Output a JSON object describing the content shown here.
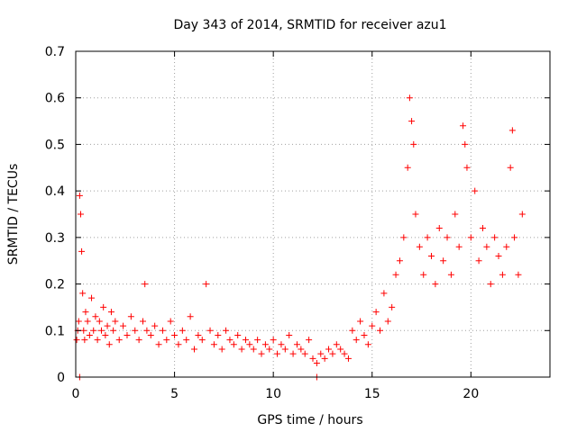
{
  "chart_data": {
    "type": "scatter",
    "title": "Day 343 of 2014, SRMTID for receiver azu1",
    "xlabel": "GPS time / hours",
    "ylabel": "SRMTID / TECUs",
    "xlim": [
      0,
      24
    ],
    "ylim": [
      0,
      0.7
    ],
    "xticks": [
      0,
      5,
      10,
      15,
      20
    ],
    "xtick_labels": [
      "0",
      "5",
      "10",
      "15",
      "20"
    ],
    "yticks": [
      0,
      0.1,
      0.2,
      0.3,
      0.4,
      0.5,
      0.6,
      0.7
    ],
    "ytick_labels": [
      "0",
      "0.1",
      "0.2",
      "0.3",
      "0.4",
      "0.5",
      "0.6",
      "0.7"
    ],
    "grid": true,
    "marker": "+",
    "color": "#ff0000",
    "series": [
      {
        "name": "azu1",
        "x": [
          0.05,
          0.1,
          0.15,
          0.2,
          0.25,
          0.3,
          0.35,
          0.4,
          0.45,
          0.5,
          0.6,
          0.7,
          0.8,
          0.9,
          1.0,
          1.1,
          1.2,
          1.3,
          1.4,
          1.5,
          1.6,
          1.7,
          1.8,
          1.9,
          2.0,
          2.2,
          2.4,
          2.6,
          2.8,
          3.0,
          3.2,
          3.4,
          3.5,
          3.6,
          3.8,
          4.0,
          4.2,
          4.4,
          4.6,
          4.8,
          5.0,
          5.2,
          5.4,
          5.6,
          5.8,
          6.0,
          6.2,
          6.4,
          6.6,
          6.8,
          7.0,
          7.2,
          7.4,
          7.6,
          7.8,
          8.0,
          8.2,
          8.4,
          8.6,
          8.8,
          9.0,
          9.2,
          9.4,
          9.6,
          9.8,
          10.0,
          10.2,
          10.4,
          10.6,
          10.8,
          11.0,
          11.2,
          11.4,
          11.6,
          11.8,
          12.0,
          12.2,
          12.4,
          12.6,
          12.8,
          13.0,
          13.2,
          13.4,
          13.6,
          13.8,
          14.0,
          14.2,
          14.4,
          14.6,
          14.8,
          15.0,
          15.2,
          15.4,
          15.6,
          15.8,
          16.0,
          16.2,
          16.4,
          16.6,
          16.8,
          16.9,
          17.0,
          17.1,
          17.2,
          17.4,
          17.6,
          17.8,
          18.0,
          18.2,
          18.4,
          18.6,
          18.8,
          19.0,
          19.2,
          19.4,
          19.6,
          19.7,
          19.8,
          20.0,
          20.2,
          20.4,
          20.6,
          20.8,
          21.0,
          21.2,
          21.4,
          21.6,
          21.8,
          22.0,
          22.1,
          22.2,
          22.4,
          22.6,
          0.2,
          12.2
        ],
        "y": [
          0.08,
          0.1,
          0.12,
          0.39,
          0.35,
          0.27,
          0.18,
          0.1,
          0.08,
          0.14,
          0.12,
          0.09,
          0.17,
          0.1,
          0.13,
          0.08,
          0.12,
          0.1,
          0.15,
          0.09,
          0.11,
          0.07,
          0.14,
          0.1,
          0.12,
          0.08,
          0.11,
          0.09,
          0.13,
          0.1,
          0.08,
          0.12,
          0.2,
          0.1,
          0.09,
          0.11,
          0.07,
          0.1,
          0.08,
          0.12,
          0.09,
          0.07,
          0.1,
          0.08,
          0.13,
          0.06,
          0.09,
          0.08,
          0.2,
          0.1,
          0.07,
          0.09,
          0.06,
          0.1,
          0.08,
          0.07,
          0.09,
          0.06,
          0.08,
          0.07,
          0.06,
          0.08,
          0.05,
          0.07,
          0.06,
          0.08,
          0.05,
          0.07,
          0.06,
          0.09,
          0.05,
          0.07,
          0.06,
          0.05,
          0.08,
          0.04,
          0.03,
          0.05,
          0.04,
          0.06,
          0.05,
          0.07,
          0.06,
          0.05,
          0.04,
          0.1,
          0.08,
          0.12,
          0.09,
          0.07,
          0.11,
          0.14,
          0.1,
          0.18,
          0.12,
          0.15,
          0.22,
          0.25,
          0.3,
          0.45,
          0.6,
          0.55,
          0.5,
          0.35,
          0.28,
          0.22,
          0.3,
          0.26,
          0.2,
          0.32,
          0.25,
          0.3,
          0.22,
          0.35,
          0.28,
          0.54,
          0.5,
          0.45,
          0.3,
          0.4,
          0.25,
          0.32,
          0.28,
          0.2,
          0.3,
          0.26,
          0.22,
          0.28,
          0.45,
          0.53,
          0.3,
          0.22,
          0.35,
          0.0,
          0.0
        ]
      }
    ]
  }
}
